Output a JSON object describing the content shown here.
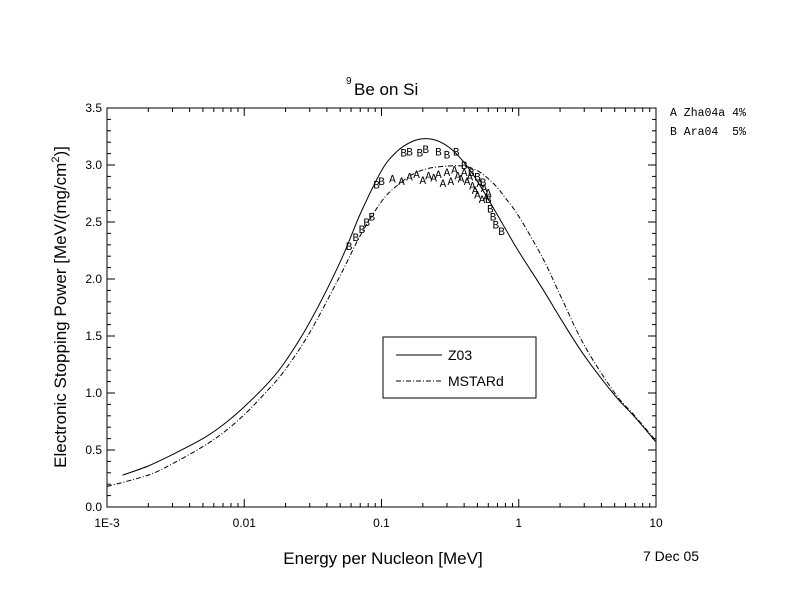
{
  "chart_data": {
    "type": "line",
    "title_sup": "9",
    "title_main": "Be on Si",
    "xlabel": "Energy per Nucleon [MeV]",
    "ylabel_main": "Electronic Stopping Power [MeV/(mg/cm",
    "ylabel_sup": "2",
    "ylabel_end": ")]",
    "xscale": "log",
    "xlim": [
      0.001,
      10
    ],
    "ylim": [
      0,
      3.5
    ],
    "x_ticks": [
      0.001,
      0.01,
      0.1,
      1,
      10
    ],
    "x_tick_labels": [
      "1E-3",
      "0.01",
      "0.1",
      "1",
      "10"
    ],
    "y_ticks": [
      0,
      0.5,
      1,
      1.5,
      2,
      2.5,
      3,
      3.5
    ],
    "y_tick_labels": [
      "0.0",
      "0.5",
      "1.0",
      "1.5",
      "2.0",
      "2.5",
      "3.0",
      "3.5"
    ],
    "grid": false,
    "legend_position": "center-right",
    "series": [
      {
        "name": "Z03",
        "style": "solid",
        "x": [
          0.0013,
          0.002,
          0.003,
          0.005,
          0.007,
          0.01,
          0.015,
          0.02,
          0.03,
          0.05,
          0.07,
          0.1,
          0.13,
          0.17,
          0.22,
          0.28,
          0.35,
          0.45,
          0.6,
          0.8,
          1,
          1.5,
          2,
          3,
          5,
          7,
          10
        ],
        "y": [
          0.28,
          0.36,
          0.46,
          0.6,
          0.72,
          0.88,
          1.09,
          1.28,
          1.62,
          2.15,
          2.57,
          2.95,
          3.12,
          3.21,
          3.23,
          3.19,
          3.1,
          2.94,
          2.7,
          2.44,
          2.24,
          1.91,
          1.66,
          1.33,
          0.98,
          0.79,
          0.57
        ]
      },
      {
        "name": "MSTARd",
        "style": "dash-dot",
        "x": [
          0.001,
          0.002,
          0.003,
          0.005,
          0.007,
          0.01,
          0.015,
          0.02,
          0.03,
          0.05,
          0.07,
          0.1,
          0.13,
          0.17,
          0.22,
          0.3,
          0.4,
          0.5,
          0.6,
          0.7,
          0.8,
          1,
          1.5,
          2,
          3,
          5,
          7,
          10
        ],
        "y": [
          0.18,
          0.28,
          0.38,
          0.53,
          0.65,
          0.81,
          1.03,
          1.21,
          1.53,
          2.03,
          2.38,
          2.68,
          2.82,
          2.92,
          2.97,
          2.99,
          2.99,
          2.95,
          2.88,
          2.8,
          2.71,
          2.55,
          2.18,
          1.86,
          1.42,
          1.0,
          0.8,
          0.58
        ]
      }
    ],
    "markers": [
      {
        "label": "A",
        "x": [
          0.12,
          0.14,
          0.16,
          0.18,
          0.2,
          0.22,
          0.24,
          0.26,
          0.28,
          0.3,
          0.32,
          0.34,
          0.36,
          0.38,
          0.4,
          0.42,
          0.44,
          0.46,
          0.48,
          0.5,
          0.52,
          0.54,
          0.56,
          0.58,
          0.6
        ],
        "y": [
          2.88,
          2.86,
          2.9,
          2.92,
          2.87,
          2.91,
          2.89,
          2.92,
          2.84,
          2.94,
          2.86,
          2.96,
          2.91,
          2.88,
          2.94,
          2.86,
          2.9,
          2.82,
          2.78,
          2.74,
          2.84,
          2.7,
          2.8,
          2.72,
          2.76
        ]
      },
      {
        "label": "B",
        "x": [
          0.058,
          0.065,
          0.072,
          0.078,
          0.085,
          0.092,
          0.1,
          0.145,
          0.16,
          0.19,
          0.21,
          0.26,
          0.3,
          0.35,
          0.4,
          0.45,
          0.5,
          0.55,
          0.6,
          0.62,
          0.65,
          0.68,
          0.75
        ],
        "y": [
          2.29,
          2.37,
          2.44,
          2.5,
          2.55,
          2.83,
          2.86,
          3.11,
          3.12,
          3.11,
          3.14,
          3.12,
          3.09,
          3.12,
          3.0,
          2.94,
          2.9,
          2.85,
          2.7,
          2.62,
          2.55,
          2.48,
          2.42
        ]
      }
    ]
  },
  "sources": {
    "line_a": "A Zha04a 4%",
    "line_b": "B Ara04  5%"
  },
  "date": "7 Dec 05"
}
